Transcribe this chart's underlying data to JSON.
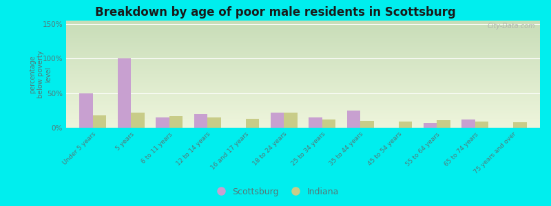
{
  "title": "Breakdown by age of poor male residents in Scottsburg",
  "ylabel": "percentage\nbelow poverty\nlevel",
  "categories": [
    "Under 5 years",
    "5 years",
    "6 to 11 years",
    "12 to 14 years",
    "16 and 17 years",
    "18 to 24 years",
    "25 to 34 years",
    "35 to 44 years",
    "45 to 54 years",
    "55 to 64 years",
    "65 to 74 years",
    "75 years and over"
  ],
  "scottsburg": [
    50,
    100,
    15,
    20,
    0,
    22,
    15,
    25,
    0,
    7,
    12,
    0
  ],
  "indiana": [
    18,
    22,
    17,
    15,
    13,
    22,
    12,
    10,
    9,
    11,
    9,
    8
  ],
  "scottsburg_color": "#c8a0d0",
  "indiana_color": "#c8cc88",
  "yticks": [
    0,
    50,
    100,
    150
  ],
  "ytick_labels": [
    "0%",
    "50%",
    "100%",
    "150%"
  ],
  "ylim": [
    0,
    155
  ],
  "bg_color_top": "#c8ddb8",
  "bg_color_bottom": "#eef5dc",
  "outer_bg": "#00eeee",
  "title_color": "#1a1a1a",
  "bar_width": 0.35,
  "tick_color": "#557777",
  "watermark": "City-Data.com"
}
